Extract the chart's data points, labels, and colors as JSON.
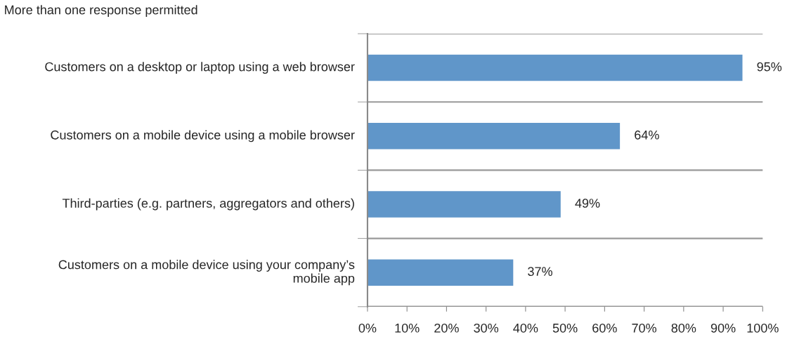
{
  "chart_data": {
    "type": "bar",
    "orientation": "horizontal",
    "annotations": [
      "More than one response permitted"
    ],
    "categories": [
      "Customers on a desktop or laptop using a web browser",
      "Customers on a mobile device using a mobile browser",
      "Third-parties (e.g. partners, aggregators and others)",
      "Customers on a mobile device using your company’s mobile app"
    ],
    "values": [
      95,
      64,
      49,
      37
    ],
    "value_labels": [
      "95%",
      "64%",
      "49%",
      "37%"
    ],
    "color": "#6096c9",
    "xlim": [
      0,
      100
    ],
    "xticks": [
      {
        "value": 0,
        "label": "0%"
      },
      {
        "value": 10,
        "label": "10%"
      },
      {
        "value": 20,
        "label": "20%"
      },
      {
        "value": 30,
        "label": "30%"
      },
      {
        "value": 40,
        "label": "40%"
      },
      {
        "value": 50,
        "label": "50%"
      },
      {
        "value": 60,
        "label": "60%"
      },
      {
        "value": 70,
        "label": "70%"
      },
      {
        "value": 80,
        "label": "80%"
      },
      {
        "value": 90,
        "label": "90%"
      },
      {
        "value": 100,
        "label": "100%"
      }
    ],
    "grid": "y"
  }
}
